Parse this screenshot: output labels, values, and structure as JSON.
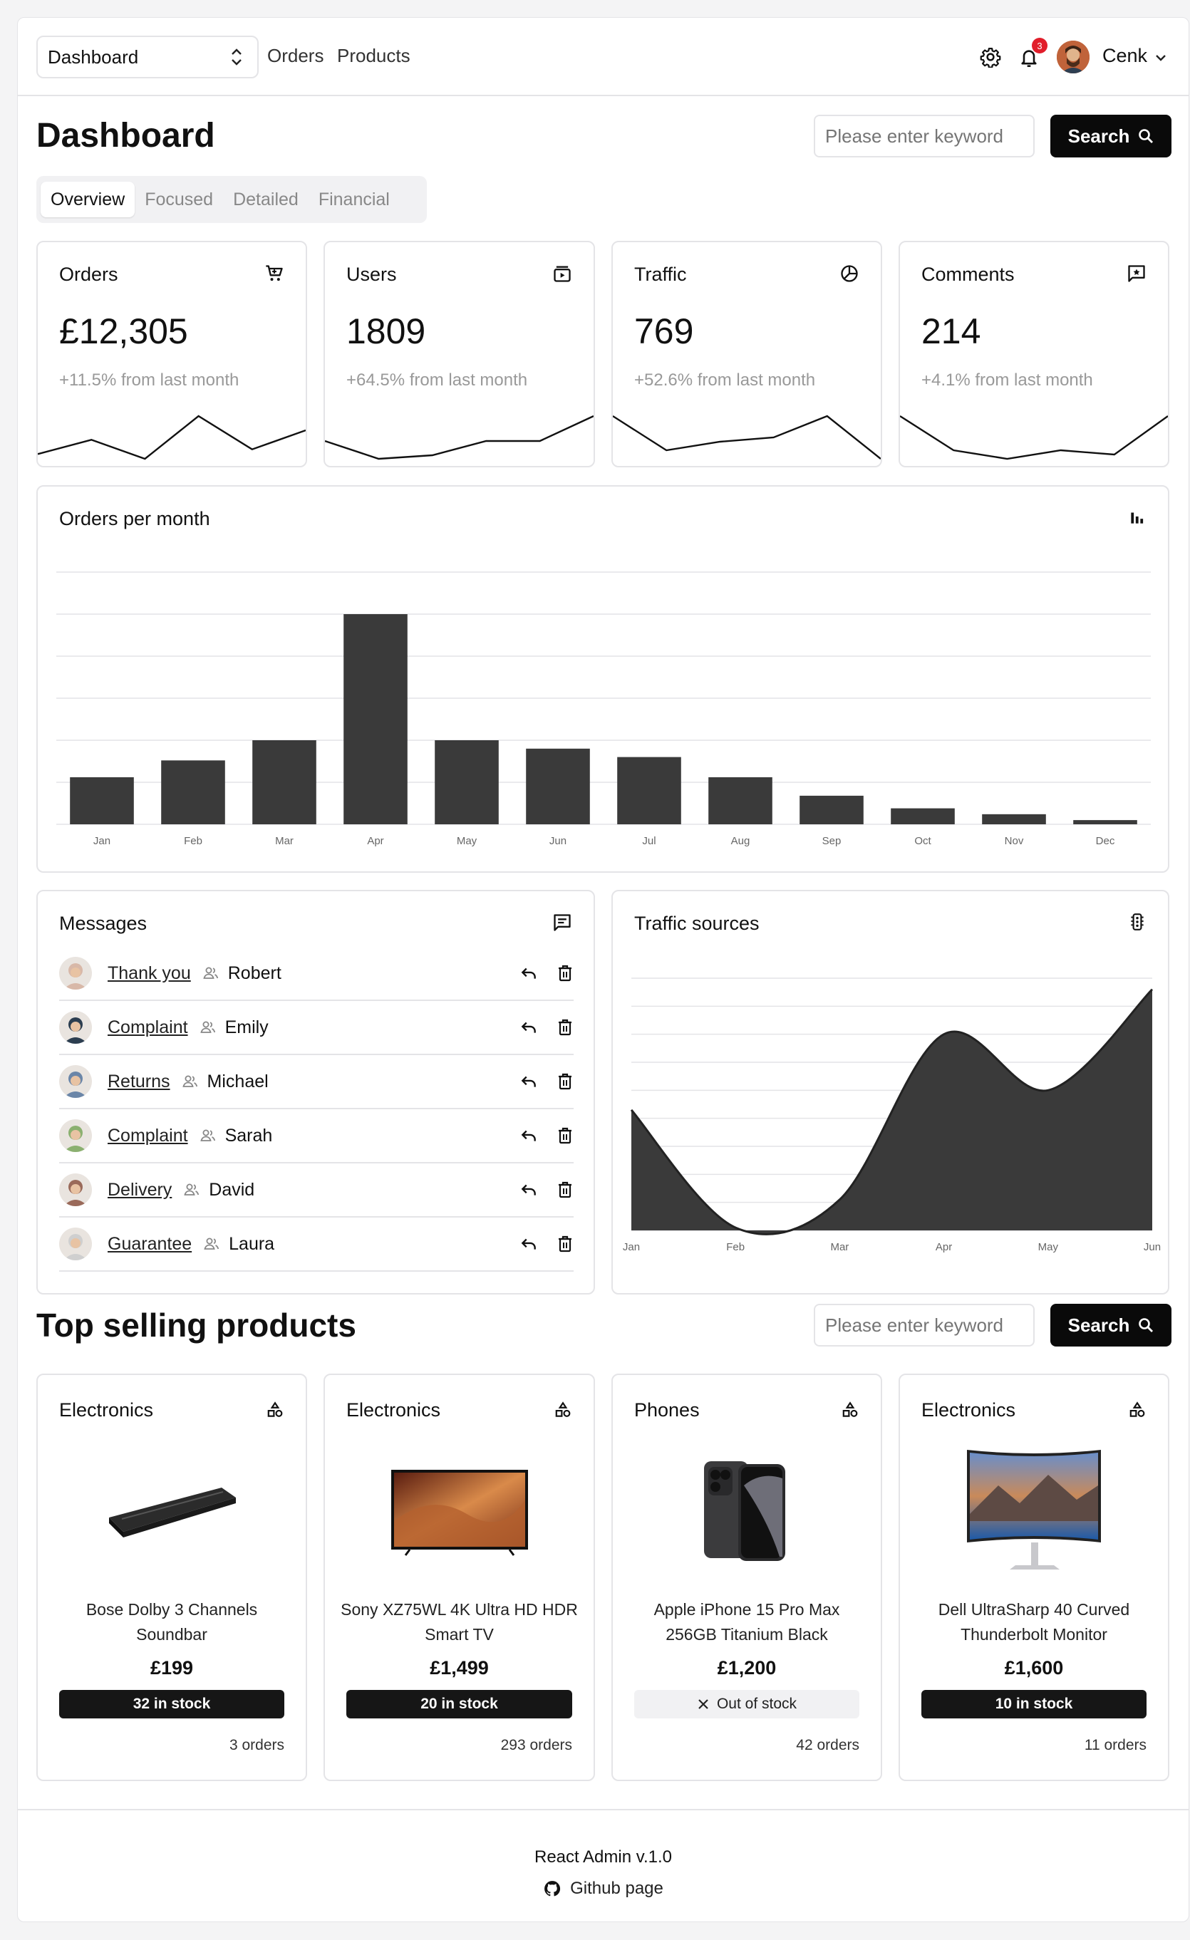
{
  "header": {
    "nav_select": "Dashboard",
    "nav_links": [
      "Orders",
      "Products"
    ],
    "notification_count": "3",
    "user_name": "Cenk"
  },
  "page": {
    "title": "Dashboard",
    "search_placeholder": "Please enter keyword",
    "search_label": "Search",
    "tabs": [
      "Overview",
      "Focused",
      "Detailed",
      "Financial"
    ]
  },
  "stats": [
    {
      "title": "Orders",
      "value": "£12,305",
      "change": "+11.5% from last month",
      "icon": "cart-icon",
      "trend": [
        2,
        5,
        1,
        10,
        3,
        7
      ]
    },
    {
      "title": "Users",
      "value": "1809",
      "change": "+64.5% from last month",
      "icon": "video-library-icon",
      "trend": [
        6,
        1,
        2,
        6,
        6,
        13
      ]
    },
    {
      "title": "Traffic",
      "value": "769",
      "change": "+52.6% from last month",
      "icon": "pie-chart-icon",
      "trend": [
        10,
        2,
        4,
        5,
        10,
        0
      ]
    },
    {
      "title": "Comments",
      "value": "214",
      "change": "+4.1% from last month",
      "icon": "comment-star-icon",
      "trend": [
        10,
        2,
        0,
        2,
        1,
        10
      ]
    }
  ],
  "orders_chart": {
    "title": "Orders per month",
    "chart_data": {
      "type": "bar",
      "categories": [
        "Jan",
        "Feb",
        "Mar",
        "Apr",
        "May",
        "Jun",
        "Jul",
        "Aug",
        "Sep",
        "Oct",
        "Nov",
        "Dec"
      ],
      "values": [
        56,
        76,
        100,
        250,
        100,
        90,
        80,
        56,
        34,
        19,
        12,
        5
      ],
      "ylim": [
        0,
        300
      ],
      "grid": true,
      "color": "#3a3a3a"
    }
  },
  "messages": {
    "title": "Messages",
    "items": [
      {
        "subject": "Thank you",
        "name": "Robert",
        "avatar_color": "#d8b8a8"
      },
      {
        "subject": "Complaint",
        "name": "Emily",
        "avatar_color": "#2c3e50"
      },
      {
        "subject": "Returns",
        "name": "Michael",
        "avatar_color": "#6b86a8"
      },
      {
        "subject": "Complaint",
        "name": "Sarah",
        "avatar_color": "#8bb070"
      },
      {
        "subject": "Delivery",
        "name": "David",
        "avatar_color": "#9a6a5a"
      },
      {
        "subject": "Guarantee",
        "name": "Laura",
        "avatar_color": "#cfcfcf"
      }
    ]
  },
  "traffic_chart": {
    "title": "Traffic sources",
    "chart_data": {
      "type": "area",
      "x": [
        "Jan",
        "Feb",
        "Mar",
        "Apr",
        "May",
        "Jun"
      ],
      "values": [
        43,
        1,
        11,
        70,
        50,
        86
      ],
      "ylim": [
        0,
        90
      ],
      "grid": true,
      "color": "#3a3a3a"
    }
  },
  "products": {
    "title": "Top selling products",
    "search_placeholder": "Please enter keyword",
    "search_label": "Search",
    "items": [
      {
        "category": "Electronics",
        "name": "Bose Dolby 3 Channels Soundbar",
        "price": "£199",
        "stock": "32 in stock",
        "in_stock": true,
        "orders": "3 orders",
        "image": "soundbar"
      },
      {
        "category": "Electronics",
        "name": "Sony XZ75WL 4K Ultra HD HDR Smart TV",
        "price": "£1,499",
        "stock": "20 in stock",
        "in_stock": true,
        "orders": "293 orders",
        "image": "tv"
      },
      {
        "category": "Phones",
        "name": "Apple iPhone 15 Pro Max 256GB Titanium Black",
        "price": "£1,200",
        "stock": "Out of stock",
        "in_stock": false,
        "orders": "42 orders",
        "image": "phone"
      },
      {
        "category": "Electronics",
        "name": "Dell UltraSharp 40 Curved Thunderbolt Monitor",
        "price": "£1,600",
        "stock": "10 in stock",
        "in_stock": true,
        "orders": "11 orders",
        "image": "monitor"
      }
    ]
  },
  "footer": {
    "version": "React Admin v.1.0",
    "link": "Github page"
  }
}
